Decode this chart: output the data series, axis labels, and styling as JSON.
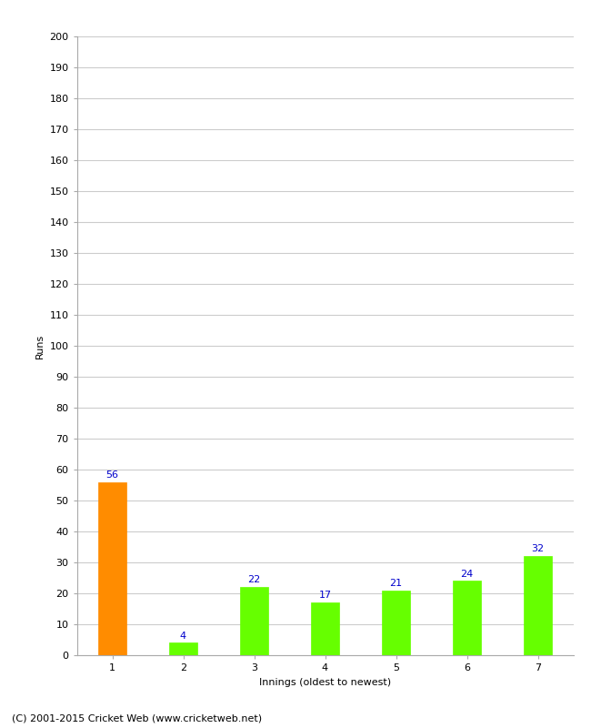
{
  "categories": [
    "1",
    "2",
    "3",
    "4",
    "5",
    "6",
    "7"
  ],
  "values": [
    56,
    4,
    22,
    17,
    21,
    24,
    32
  ],
  "bar_colors": [
    "#ff8c00",
    "#66ff00",
    "#66ff00",
    "#66ff00",
    "#66ff00",
    "#66ff00",
    "#66ff00"
  ],
  "xlabel": "Innings (oldest to newest)",
  "ylabel": "Runs",
  "ylim": [
    0,
    200
  ],
  "yticks": [
    0,
    10,
    20,
    30,
    40,
    50,
    60,
    70,
    80,
    90,
    100,
    110,
    120,
    130,
    140,
    150,
    160,
    170,
    180,
    190,
    200
  ],
  "label_color": "#0000cc",
  "label_fontsize": 8,
  "axis_fontsize": 8,
  "ylabel_fontsize": 8,
  "xlabel_fontsize": 8,
  "footer_text": "(C) 2001-2015 Cricket Web (www.cricketweb.net)",
  "footer_fontsize": 8,
  "background_color": "#ffffff",
  "grid_color": "#cccccc",
  "bar_width": 0.4
}
